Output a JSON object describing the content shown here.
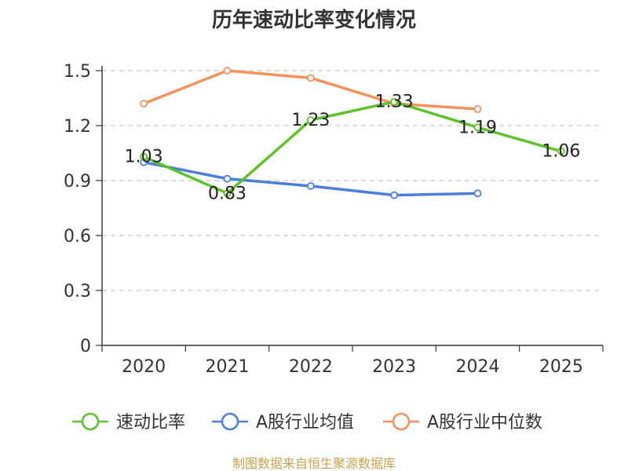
{
  "chart_data": {
    "type": "line",
    "title": "历年速动比率变化情况",
    "categories": [
      "2020",
      "2021",
      "2022",
      "2023",
      "2024",
      "2025"
    ],
    "y_ticks": [
      "0",
      "0.3",
      "0.6",
      "0.9",
      "1.2",
      "1.5"
    ],
    "ylim": [
      0,
      1.5
    ],
    "grid": true,
    "legend_position": "bottom",
    "series": [
      {
        "name": "速动比率",
        "color": "#5cc32a",
        "values": [
          1.03,
          0.83,
          1.23,
          1.33,
          1.19,
          1.06
        ],
        "labels": [
          "1.03",
          "0.83",
          "1.23",
          "1.33",
          "1.19",
          "1.06"
        ]
      },
      {
        "name": "A股行业均值",
        "color": "#4a7fdb",
        "values": [
          1.0,
          0.91,
          0.87,
          0.82,
          0.83,
          null
        ]
      },
      {
        "name": "A股行业中位数",
        "color": "#f5915a",
        "values": [
          1.32,
          1.5,
          1.46,
          1.32,
          1.29,
          null
        ]
      }
    ],
    "source": "制图数据来自恒生聚源数据库"
  }
}
